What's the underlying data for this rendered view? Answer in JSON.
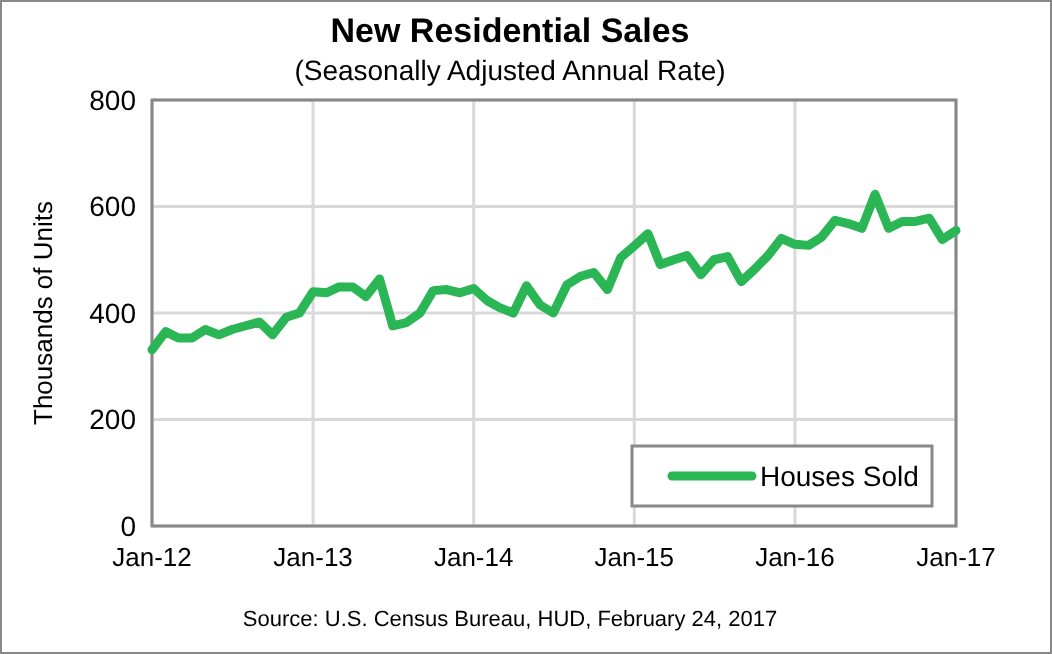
{
  "chart_data": {
    "type": "line",
    "title": "New Residential Sales",
    "subtitle": "(Seasonally Adjusted Annual Rate)",
    "ylabel": "Thousands of Units",
    "x": [
      "2012-01",
      "2012-02",
      "2012-03",
      "2012-04",
      "2012-05",
      "2012-06",
      "2012-07",
      "2012-08",
      "2012-09",
      "2012-10",
      "2012-11",
      "2012-12",
      "2013-01",
      "2013-02",
      "2013-03",
      "2013-04",
      "2013-05",
      "2013-06",
      "2013-07",
      "2013-08",
      "2013-09",
      "2013-10",
      "2013-11",
      "2013-12",
      "2014-01",
      "2014-02",
      "2014-03",
      "2014-04",
      "2014-05",
      "2014-06",
      "2014-07",
      "2014-08",
      "2014-09",
      "2014-10",
      "2014-11",
      "2014-12",
      "2015-01",
      "2015-02",
      "2015-03",
      "2015-04",
      "2015-05",
      "2015-06",
      "2015-07",
      "2015-08",
      "2015-09",
      "2015-10",
      "2015-11",
      "2015-12",
      "2016-01",
      "2016-02",
      "2016-03",
      "2016-04",
      "2016-05",
      "2016-06",
      "2016-07",
      "2016-08",
      "2016-09",
      "2016-10",
      "2016-11",
      "2016-12",
      "2017-01"
    ],
    "series": [
      {
        "name": "Houses Sold",
        "color": "#2bb656",
        "values": [
          331,
          365,
          353,
          353,
          369,
          359,
          369,
          376,
          383,
          359,
          392,
          400,
          440,
          438,
          449,
          449,
          431,
          464,
          376,
          382,
          400,
          442,
          444,
          438,
          446,
          423,
          410,
          400,
          451,
          415,
          400,
          453,
          469,
          476,
          444,
          504,
          526,
          549,
          491,
          500,
          508,
          472,
          500,
          506,
          459,
          482,
          508,
          540,
          529,
          527,
          542,
          574,
          568,
          559,
          623,
          559,
          572,
          572,
          578,
          538,
          555
        ]
      }
    ],
    "xlim": [
      "2012-01",
      "2017-01"
    ],
    "xticks": [
      {
        "value": "2012-01",
        "label": "Jan-12"
      },
      {
        "value": "2013-01",
        "label": "Jan-13"
      },
      {
        "value": "2014-01",
        "label": "Jan-14"
      },
      {
        "value": "2015-01",
        "label": "Jan-15"
      },
      {
        "value": "2016-01",
        "label": "Jan-16"
      },
      {
        "value": "2017-01",
        "label": "Jan-17"
      }
    ],
    "ylim": [
      0,
      800
    ],
    "yticks": [
      0,
      200,
      400,
      600,
      800
    ],
    "grid": true,
    "legend": "bottom right",
    "marker": "none",
    "line_style": "solid",
    "annotations": [
      "Source:  U.S. Census Bureau, HUD, February 24, 2017"
    ]
  }
}
